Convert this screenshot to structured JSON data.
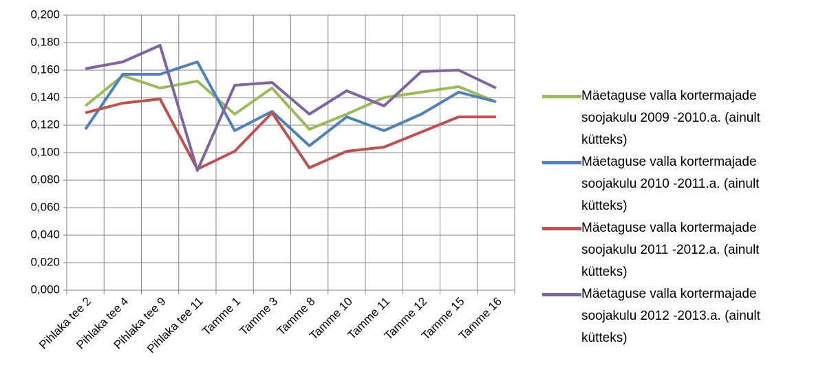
{
  "chart_data": {
    "type": "line",
    "categories": [
      "Pihlaka tee 2",
      "Pihlaka tee 4",
      "Pihlaka tee 9",
      "Pihlaka tee 11",
      "Tamme 1",
      "Tamme 3",
      "Tamme 8",
      "Tamme 10",
      "Tamme 11",
      "Tamme 12",
      "Tamme 15",
      "Tamme 16"
    ],
    "series": [
      {
        "name": "Mäetaguse valla kortermajade soojakulu 2009 -2010.a. (ainult kütteks)",
        "color": "#9bbb59",
        "values": [
          0.134,
          0.156,
          0.147,
          0.152,
          0.128,
          0.147,
          0.117,
          0.128,
          0.14,
          0.144,
          0.148,
          0.137
        ]
      },
      {
        "name": "Mäetaguse valla kortermajade soojakulu 2010 -2011.a. (ainult kütteks)",
        "color": "#4f81bd",
        "values": [
          0.117,
          0.157,
          0.157,
          0.166,
          0.116,
          0.13,
          0.105,
          0.126,
          0.116,
          0.128,
          0.144,
          0.137
        ]
      },
      {
        "name": "Mäetaguse valla kortermajade soojakulu 2011 -2012.a. (ainult kütteks)",
        "color": "#c0504d",
        "values": [
          0.129,
          0.136,
          0.139,
          0.088,
          0.101,
          0.129,
          0.089,
          0.101,
          0.104,
          0.115,
          0.126,
          0.126
        ]
      },
      {
        "name": "Mäetaguse valla kortermajade soojakulu 2012 -2013.a. (ainult kütteks)",
        "color": "#8064a2",
        "values": [
          0.161,
          0.166,
          0.178,
          0.087,
          0.149,
          0.151,
          0.128,
          0.145,
          0.134,
          0.159,
          0.16,
          0.147
        ]
      }
    ],
    "ylim": [
      0,
      0.2
    ],
    "yticks": [
      {
        "value": 0,
        "label": "0,000"
      },
      {
        "value": 0.02,
        "label": "0,020"
      },
      {
        "value": 0.04,
        "label": "0,040"
      },
      {
        "value": 0.06,
        "label": "0,060"
      },
      {
        "value": 0.08,
        "label": "0,080"
      },
      {
        "value": 0.1,
        "label": "0,100"
      },
      {
        "value": 0.12,
        "label": "0,120"
      },
      {
        "value": 0.14,
        "label": "0,140"
      },
      {
        "value": 0.16,
        "label": "0,160"
      },
      {
        "value": 0.18,
        "label": "0,180"
      },
      {
        "value": 0.2,
        "label": "0,200"
      }
    ],
    "grid": true,
    "legend": "right"
  }
}
